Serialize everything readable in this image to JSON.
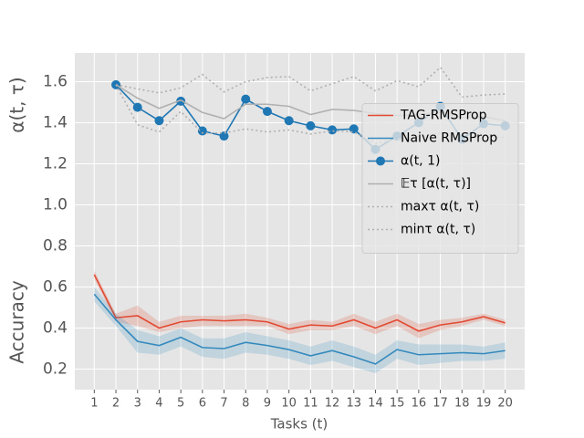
{
  "chart_data": {
    "type": "line",
    "y_labels": [
      "α(t, τ)",
      "Accuracy"
    ],
    "xlabel": "Tasks (t)",
    "x": [
      1,
      2,
      3,
      4,
      5,
      6,
      7,
      8,
      9,
      10,
      11,
      12,
      13,
      14,
      15,
      16,
      17,
      18,
      19,
      20
    ],
    "xlim": [
      0.1,
      20.9
    ],
    "xticks": [
      1,
      2,
      3,
      4,
      5,
      6,
      7,
      8,
      9,
      10,
      11,
      12,
      13,
      14,
      15,
      16,
      17,
      18,
      19,
      20
    ],
    "ylim": [
      0.1,
      1.74
    ],
    "yticks": [
      0.2,
      0.4,
      0.6,
      0.8,
      {
        "value": 1,
        "label": "1.0"
      },
      1.2,
      1.4,
      1.6
    ],
    "grid": true,
    "legend": "center right",
    "series": [
      {
        "name": "TAG-RMSProp",
        "color": "#E24A33",
        "style": "solid",
        "values": [
          0.66,
          0.45,
          0.46,
          0.4,
          0.43,
          0.44,
          0.435,
          0.44,
          0.43,
          0.395,
          0.415,
          0.41,
          0.44,
          0.4,
          0.44,
          0.385,
          0.415,
          0.43,
          0.455,
          0.425
        ],
        "band_low": [
          0.64,
          0.43,
          0.41,
          0.38,
          0.4,
          0.41,
          0.41,
          0.41,
          0.41,
          0.37,
          0.39,
          0.39,
          0.41,
          0.37,
          0.41,
          0.35,
          0.39,
          0.41,
          0.44,
          0.41
        ],
        "band_high": [
          0.68,
          0.47,
          0.51,
          0.43,
          0.46,
          0.46,
          0.46,
          0.47,
          0.45,
          0.42,
          0.44,
          0.43,
          0.47,
          0.43,
          0.47,
          0.42,
          0.44,
          0.45,
          0.47,
          0.44
        ]
      },
      {
        "name": "Naive RMSProp",
        "color": "#348ABD",
        "style": "solid",
        "values": [
          0.565,
          0.44,
          0.335,
          0.315,
          0.355,
          0.305,
          0.3,
          0.33,
          0.315,
          0.295,
          0.265,
          0.29,
          0.26,
          0.225,
          0.295,
          0.27,
          0.275,
          0.28,
          0.275,
          0.29
        ],
        "band_low": [
          0.53,
          0.41,
          0.28,
          0.27,
          0.31,
          0.26,
          0.25,
          0.28,
          0.27,
          0.25,
          0.22,
          0.24,
          0.21,
          0.18,
          0.25,
          0.22,
          0.23,
          0.24,
          0.24,
          0.25
        ],
        "band_high": [
          0.6,
          0.47,
          0.39,
          0.36,
          0.4,
          0.35,
          0.35,
          0.38,
          0.36,
          0.34,
          0.31,
          0.34,
          0.31,
          0.27,
          0.34,
          0.32,
          0.32,
          0.32,
          0.31,
          0.33
        ]
      },
      {
        "name": "α(t, 1)",
        "color": "#1f77b4",
        "style": "solid",
        "marker": true,
        "values": [
          null,
          1.585,
          1.475,
          1.41,
          1.505,
          1.36,
          1.335,
          1.515,
          1.455,
          1.41,
          1.385,
          1.365,
          1.37,
          1.27,
          1.335,
          1.4,
          1.48,
          1.32,
          1.395,
          1.385
        ]
      },
      {
        "name": "𝔼τ [α(t, τ)]",
        "color": "#b0b0b0",
        "style": "solid",
        "values": [
          null,
          1.585,
          1.52,
          1.47,
          1.51,
          1.45,
          1.42,
          1.49,
          1.49,
          1.48,
          1.44,
          1.465,
          1.46,
          1.445,
          1.435,
          1.44,
          1.45,
          1.425,
          1.43,
          1.41
        ]
      },
      {
        "name": "maxτ α(t, τ)",
        "color": "#b0b0b0",
        "style": "dotted",
        "values": [
          null,
          1.585,
          1.565,
          1.545,
          1.57,
          1.635,
          1.55,
          1.6,
          1.62,
          1.625,
          1.555,
          1.59,
          1.625,
          1.555,
          1.605,
          1.575,
          1.67,
          1.525,
          1.535,
          1.54
        ]
      },
      {
        "name": "minτ α(t, τ)",
        "color": "#b0b0b0",
        "style": "dotted",
        "values": [
          null,
          1.585,
          1.39,
          1.355,
          1.455,
          1.35,
          1.35,
          1.37,
          1.355,
          1.365,
          1.345,
          1.36,
          1.355,
          1.3,
          1.32,
          1.33,
          1.35,
          1.32,
          1.33,
          1.33
        ]
      }
    ]
  }
}
